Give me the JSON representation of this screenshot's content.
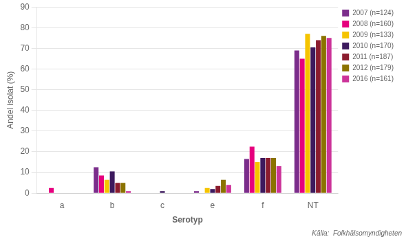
{
  "chart_data": {
    "type": "bar",
    "x_label": "Serotyp",
    "y_label": "Andel isolat (%)",
    "annotations": [
      "Källa:  Folkhälsomyndigheten"
    ],
    "categories": [
      "a",
      "b",
      "c",
      "e",
      "f",
      "NT"
    ],
    "series": [
      {
        "name": "2007 (n=124)",
        "color": "#7b2d8b",
        "values": [
          0,
          12.5,
          0,
          1.0,
          16.5,
          69.0
        ]
      },
      {
        "name": "2008 (n=160)",
        "color": "#e6007e",
        "values": [
          2.5,
          8.5,
          0,
          0,
          22.5,
          65.0
        ]
      },
      {
        "name": "2009 (n=133)",
        "color": "#f5c400",
        "values": [
          0,
          6.5,
          0,
          2.5,
          15.0,
          77.0
        ]
      },
      {
        "name": "2010 (n=170)",
        "color": "#3d1a5e",
        "values": [
          0,
          10.5,
          1.0,
          2.0,
          17.0,
          70.5
        ]
      },
      {
        "name": "2011 (n=187)",
        "color": "#8b1c2e",
        "values": [
          0,
          5.0,
          0,
          3.5,
          17.0,
          74.0
        ]
      },
      {
        "name": "2012 (n=179)",
        "color": "#8b7300",
        "values": [
          0,
          5.0,
          0,
          6.5,
          17.0,
          76.0
        ]
      },
      {
        "name": "2016 (n=161)",
        "color": "#cc3399",
        "values": [
          0,
          1.0,
          0,
          4.0,
          13.0,
          75.0
        ]
      }
    ],
    "ylim": [
      0,
      90
    ],
    "yticks": [
      0,
      10,
      20,
      30,
      40,
      50,
      60,
      70,
      80,
      90
    ],
    "grid": true,
    "legend": "upper right"
  }
}
